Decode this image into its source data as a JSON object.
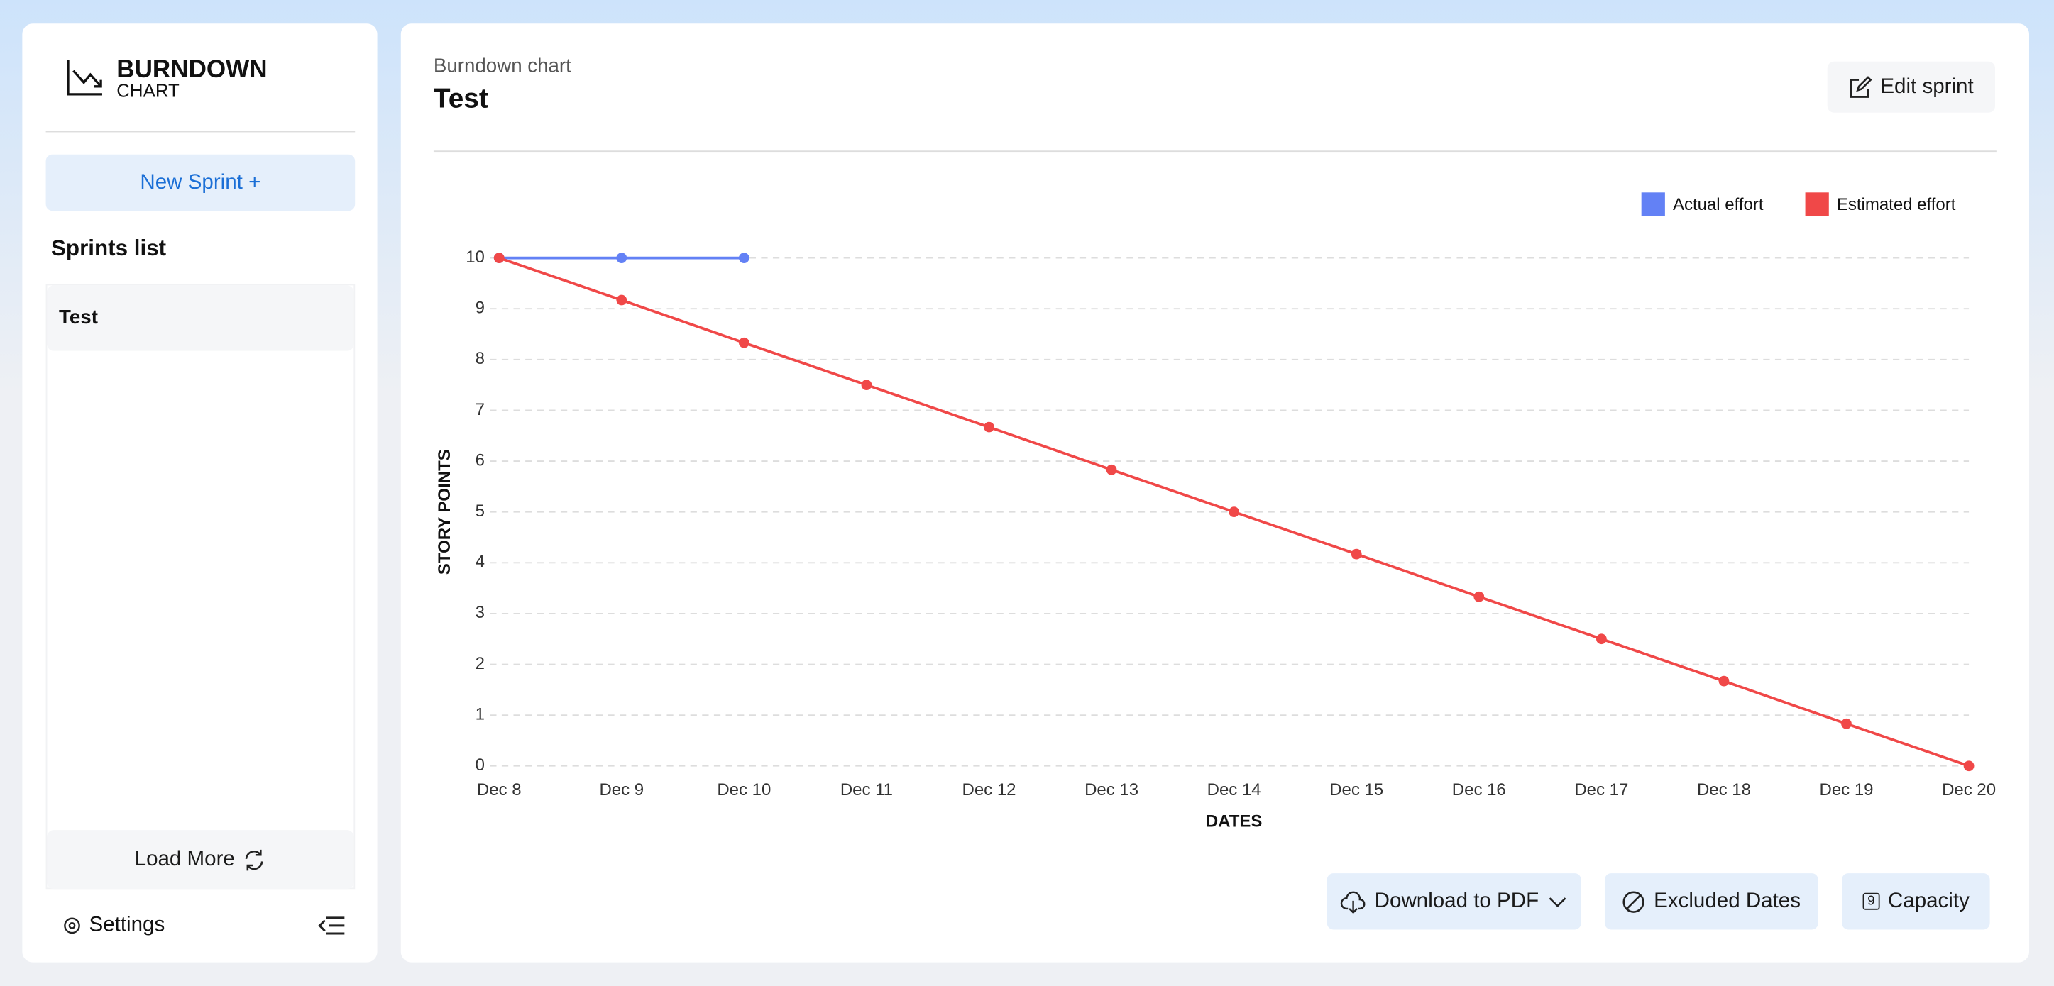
{
  "sidebar": {
    "logo_title": "BURNDOWN",
    "logo_subtitle": "CHART",
    "new_sprint": "New Sprint +",
    "list_title": "Sprints list",
    "sprints": [
      "Test"
    ],
    "load_more": "Load More",
    "settings": "Settings"
  },
  "header": {
    "subtitle": "Burndown chart",
    "title": "Test",
    "edit": "Edit sprint"
  },
  "chart_data": {
    "type": "line",
    "x_label": "DATES",
    "y_label": "STORY POINTS",
    "categories": [
      "Dec 8",
      "Dec 9",
      "Dec 10",
      "Dec 11",
      "Dec 12",
      "Dec 13",
      "Dec 14",
      "Dec 15",
      "Dec 16",
      "Dec 17",
      "Dec 18",
      "Dec 19",
      "Dec 20"
    ],
    "series": [
      {
        "name": "Actual effort",
        "color": "#6381f5",
        "values": [
          10,
          10,
          10,
          null,
          null,
          null,
          null,
          null,
          null,
          null,
          null,
          null,
          null
        ]
      },
      {
        "name": "Estimated effort",
        "color": "#f04848",
        "values": [
          10,
          9.17,
          8.33,
          7.5,
          6.67,
          5.83,
          5,
          4.17,
          3.33,
          2.5,
          1.67,
          0.83,
          0
        ]
      }
    ],
    "ylim": [
      0,
      10
    ],
    "yticks": [
      0,
      1,
      2,
      3,
      4,
      5,
      6,
      7,
      8,
      9,
      10
    ],
    "grid": true,
    "legend": "top-right"
  },
  "footer": {
    "download": "Download to PDF",
    "excluded": "Excluded Dates",
    "capacity_icon": "9",
    "capacity": "Capacity"
  }
}
